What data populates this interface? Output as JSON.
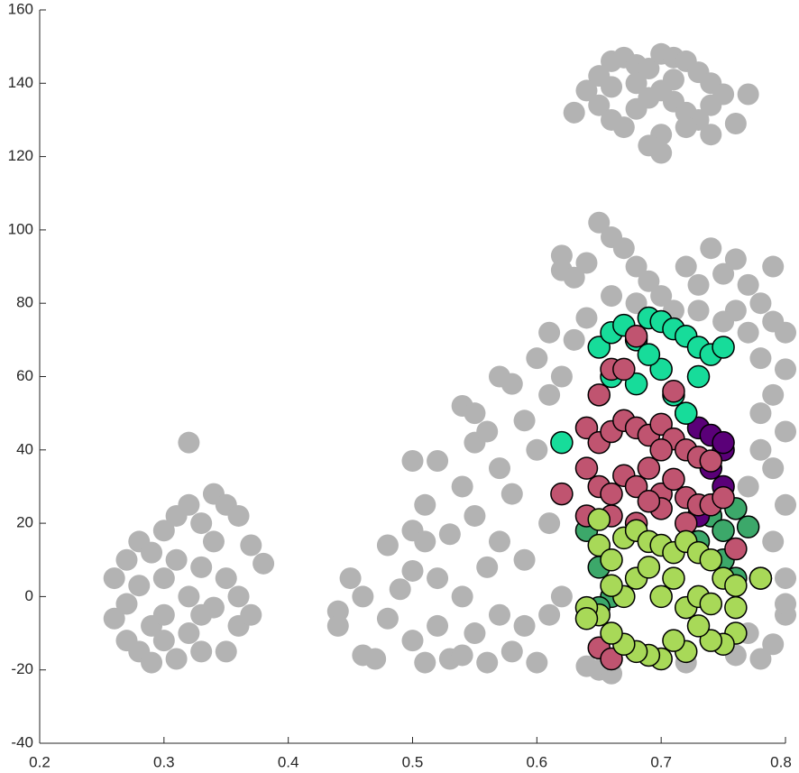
{
  "chart_data": {
    "type": "scatter",
    "xlim": [
      0.2,
      0.8
    ],
    "xticks": [
      0.2,
      0.3,
      0.4,
      0.5,
      0.6,
      0.7,
      0.8
    ],
    "ylim": [
      -40,
      160
    ],
    "yticks": [
      -40,
      -20,
      0,
      20,
      40,
      60,
      80,
      100,
      120,
      140,
      160
    ],
    "series": [
      {
        "color": "#b3b3b3",
        "x": [
          0.65,
          0.66,
          0.67,
          0.68,
          0.69,
          0.7,
          0.71,
          0.72,
          0.73,
          0.74,
          0.75,
          0.77,
          0.64,
          0.63,
          0.65,
          0.66,
          0.67,
          0.68,
          0.69,
          0.7,
          0.71,
          0.72,
          0.73,
          0.74,
          0.76,
          0.7,
          0.69,
          0.7,
          0.72,
          0.68,
          0.71,
          0.66,
          0.74,
          0.26,
          0.26,
          0.27,
          0.27,
          0.27,
          0.28,
          0.28,
          0.28,
          0.29,
          0.29,
          0.29,
          0.3,
          0.3,
          0.3,
          0.31,
          0.31,
          0.31,
          0.32,
          0.32,
          0.32,
          0.32,
          0.33,
          0.33,
          0.33,
          0.34,
          0.34,
          0.34,
          0.35,
          0.35,
          0.35,
          0.36,
          0.36,
          0.36,
          0.37,
          0.37,
          0.38,
          0.3,
          0.33,
          0.45,
          0.44,
          0.44,
          0.46,
          0.46,
          0.47,
          0.48,
          0.48,
          0.49,
          0.5,
          0.5,
          0.5,
          0.5,
          0.51,
          0.51,
          0.51,
          0.52,
          0.52,
          0.52,
          0.53,
          0.53,
          0.54,
          0.54,
          0.54,
          0.54,
          0.55,
          0.55,
          0.55,
          0.55,
          0.56,
          0.56,
          0.56,
          0.57,
          0.57,
          0.57,
          0.57,
          0.58,
          0.58,
          0.58,
          0.59,
          0.59,
          0.59,
          0.6,
          0.6,
          0.6,
          0.61,
          0.61,
          0.61,
          0.61,
          0.62,
          0.62,
          0.62,
          0.62,
          0.63,
          0.64,
          0.65,
          0.66,
          0.66,
          0.67,
          0.68,
          0.68,
          0.69,
          0.63,
          0.64,
          0.65,
          0.66,
          0.64,
          0.72,
          0.73,
          0.74,
          0.75,
          0.76,
          0.77,
          0.78,
          0.79,
          0.8,
          0.8,
          0.79,
          0.8,
          0.79,
          0.8,
          0.79,
          0.8,
          0.8,
          0.79,
          0.78,
          0.77,
          0.76,
          0.78,
          0.77,
          0.76,
          0.75,
          0.73,
          0.72,
          0.7,
          0.71,
          0.79,
          0.78,
          0.78,
          0.77,
          0.8
        ],
        "y": [
          142,
          146,
          147,
          145,
          144,
          148,
          147,
          146,
          143,
          140,
          137,
          137,
          138,
          132,
          134,
          130,
          128,
          133,
          136,
          138,
          135,
          132,
          130,
          126,
          129,
          126,
          123,
          121,
          128,
          140,
          141,
          139,
          134,
          5,
          -6,
          10,
          -2,
          -12,
          15,
          3,
          -15,
          12,
          -8,
          -18,
          18,
          5,
          -5,
          22,
          10,
          -17,
          25,
          0,
          -10,
          42,
          20,
          8,
          -15,
          28,
          15,
          -3,
          25,
          5,
          -15,
          22,
          0,
          -8,
          14,
          -5,
          9,
          -12,
          -5,
          5,
          -4,
          -8,
          -16,
          0,
          -17,
          14,
          -6,
          2,
          37,
          18,
          7,
          -12,
          25,
          15,
          -18,
          37,
          5,
          -8,
          17,
          -17,
          52,
          30,
          0,
          -16,
          50,
          42,
          22,
          -10,
          45,
          8,
          -18,
          60,
          35,
          15,
          -5,
          58,
          28,
          -15,
          48,
          10,
          -8,
          65,
          40,
          -18,
          72,
          55,
          20,
          -5,
          60,
          0,
          93,
          89,
          87,
          91,
          102,
          98,
          82,
          95,
          90,
          80,
          86,
          70,
          76,
          -20,
          -21,
          -19,
          90,
          85,
          95,
          88,
          92,
          85,
          80,
          75,
          72,
          62,
          55,
          45,
          35,
          25,
          15,
          5,
          -5,
          -13,
          -17,
          -10,
          -16,
          65,
          72,
          78,
          75,
          78,
          -18,
          82,
          78,
          90,
          50,
          40,
          30,
          -2
        ]
      },
      {
        "color": "#3ca86a",
        "edgecolor": "#000000",
        "x": [
          0.64,
          0.65,
          0.66,
          0.74,
          0.75,
          0.76,
          0.77,
          0.75,
          0.76,
          0.78,
          0.65,
          0.73
        ],
        "y": [
          18,
          8,
          0,
          22,
          18,
          24,
          19,
          10,
          5,
          5,
          -3,
          15
        ]
      },
      {
        "color": "#5a0078",
        "edgecolor": "#000000",
        "x": [
          0.72,
          0.73,
          0.74,
          0.75,
          0.74,
          0.75,
          0.74,
          0.73,
          0.75
        ],
        "y": [
          50,
          46,
          44,
          40,
          35,
          30,
          25,
          22,
          42
        ]
      },
      {
        "color": "#17dc9a",
        "edgecolor": "#000000",
        "x": [
          0.65,
          0.66,
          0.67,
          0.68,
          0.69,
          0.7,
          0.71,
          0.72,
          0.73,
          0.74,
          0.75,
          0.66,
          0.68,
          0.7,
          0.71,
          0.72,
          0.62,
          0.69,
          0.73
        ],
        "y": [
          68,
          72,
          74,
          70,
          76,
          75,
          73,
          71,
          68,
          66,
          68,
          60,
          58,
          62,
          55,
          50,
          42,
          66,
          60
        ]
      },
      {
        "color": "#c05470",
        "edgecolor": "#000000",
        "x": [
          0.68,
          0.66,
          0.67,
          0.71,
          0.65,
          0.64,
          0.65,
          0.66,
          0.67,
          0.68,
          0.69,
          0.7,
          0.71,
          0.72,
          0.73,
          0.74,
          0.64,
          0.65,
          0.66,
          0.67,
          0.68,
          0.69,
          0.7,
          0.71,
          0.72,
          0.73,
          0.74,
          0.75,
          0.62,
          0.64,
          0.66,
          0.68,
          0.7,
          0.72,
          0.76,
          0.65,
          0.66,
          0.7,
          0.69
        ],
        "y": [
          71,
          62,
          62,
          56,
          55,
          46,
          42,
          45,
          48,
          46,
          44,
          47,
          43,
          40,
          38,
          37,
          35,
          30,
          28,
          33,
          30,
          35,
          28,
          32,
          27,
          25,
          25,
          27,
          28,
          22,
          22,
          20,
          24,
          20,
          13,
          -14,
          -17,
          40,
          26
        ]
      },
      {
        "color": "#a8d958",
        "edgecolor": "#000000",
        "x": [
          0.65,
          0.65,
          0.66,
          0.67,
          0.68,
          0.69,
          0.7,
          0.71,
          0.72,
          0.73,
          0.74,
          0.75,
          0.76,
          0.76,
          0.76,
          0.75,
          0.74,
          0.73,
          0.72,
          0.71,
          0.7,
          0.69,
          0.68,
          0.67,
          0.66,
          0.65,
          0.64,
          0.64,
          0.78,
          0.67,
          0.68,
          0.7,
          0.71,
          0.72,
          0.69,
          0.66,
          0.73,
          0.74
        ],
        "y": [
          21,
          14,
          10,
          16,
          18,
          15,
          14,
          12,
          15,
          12,
          10,
          5,
          3,
          -3,
          -10,
          -13,
          -12,
          -8,
          -15,
          -12,
          -17,
          -16,
          -15,
          -13,
          -10,
          -5,
          -3,
          -6,
          5,
          0,
          5,
          0,
          5,
          -3,
          8,
          3,
          0,
          -2
        ]
      }
    ]
  }
}
